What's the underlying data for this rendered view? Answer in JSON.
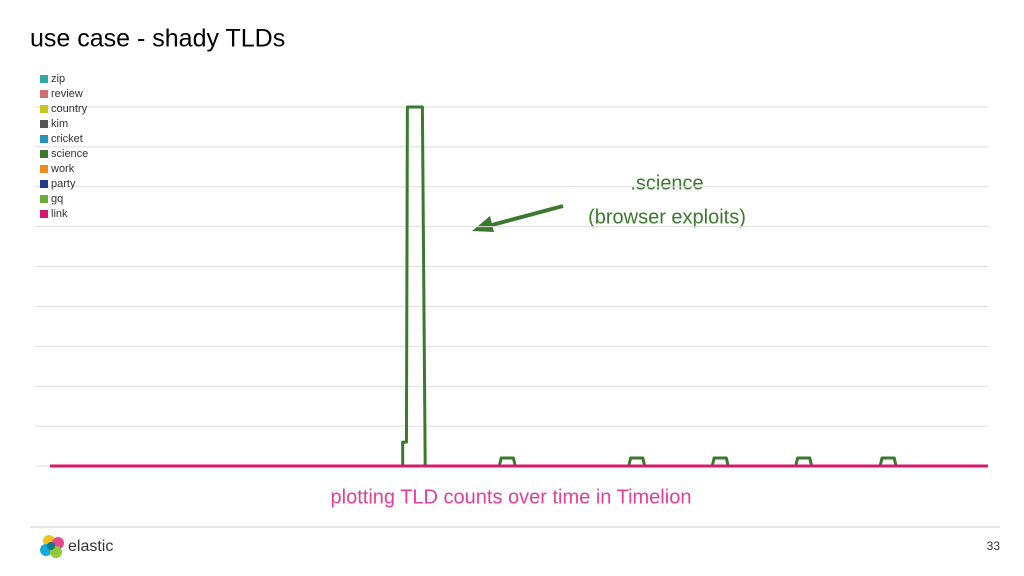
{
  "chart_data": {
    "type": "line",
    "title": "use case - shady TLDs",
    "annotations": [
      ".science",
      "(browser exploits)"
    ],
    "caption": "plotting TLD counts over time in Timelion",
    "footer": {
      "brand": "elastic",
      "page": "33"
    },
    "xlim": [
      0,
      100
    ],
    "ylim": [
      0,
      9
    ],
    "yticks": [
      0,
      1,
      2,
      3,
      4,
      5,
      6,
      7,
      8,
      9
    ],
    "grid": true,
    "legend": "top-left",
    "x": [
      0,
      37.6,
      37.6,
      38.0,
      38.1,
      39.7,
      40.0,
      47.9,
      48.1,
      49.4,
      49.6,
      61.7,
      61.9,
      63.2,
      63.4,
      70.6,
      70.8,
      72.1,
      72.3,
      79.5,
      79.7,
      81.0,
      81.2,
      88.5,
      88.7,
      90.0,
      90.2,
      100
    ],
    "series": [
      {
        "name": "zip",
        "color": "#31a7a3",
        "values": [
          0,
          0,
          0,
          0,
          0,
          0,
          0,
          0,
          0,
          0,
          0,
          0,
          0,
          0,
          0,
          0,
          0,
          0,
          0,
          0,
          0,
          0,
          0,
          0,
          0,
          0,
          0,
          0
        ]
      },
      {
        "name": "review",
        "color": "#d46d6f",
        "values": [
          0,
          0,
          0,
          0,
          0,
          0,
          0,
          0,
          0,
          0,
          0,
          0,
          0,
          0,
          0,
          0,
          0,
          0,
          0,
          0,
          0,
          0,
          0,
          0,
          0,
          0,
          0,
          0
        ]
      },
      {
        "name": "country",
        "color": "#c9c71f",
        "values": [
          0,
          0,
          0,
          0,
          0,
          0,
          0,
          0,
          0,
          0,
          0,
          0,
          0,
          0,
          0,
          0,
          0,
          0,
          0,
          0,
          0,
          0,
          0,
          0,
          0,
          0,
          0,
          0
        ]
      },
      {
        "name": "kim",
        "color": "#555555",
        "values": [
          0,
          0,
          0,
          0,
          0,
          0,
          0,
          0,
          0,
          0,
          0,
          0,
          0,
          0,
          0,
          0,
          0,
          0,
          0,
          0,
          0,
          0,
          0,
          0,
          0,
          0,
          0,
          0
        ]
      },
      {
        "name": "cricket",
        "color": "#2394bd",
        "values": [
          0,
          0,
          0,
          0,
          0,
          0,
          0,
          0,
          0,
          0,
          0,
          0,
          0,
          0,
          0,
          0,
          0,
          0,
          0,
          0,
          0,
          0,
          0,
          0,
          0,
          0,
          0,
          0
        ]
      },
      {
        "name": "science",
        "color": "#3b7a2e",
        "values": [
          0,
          0,
          0.6,
          0.6,
          9,
          9,
          0,
          0,
          0.2,
          0.2,
          0,
          0,
          0.2,
          0.2,
          0,
          0,
          0.2,
          0.2,
          0,
          0,
          0.2,
          0.2,
          0,
          0,
          0.2,
          0.2,
          0,
          0
        ]
      },
      {
        "name": "work",
        "color": "#f08b1d",
        "values": [
          0,
          0,
          0,
          0,
          0,
          0,
          0,
          0,
          0,
          0,
          0,
          0,
          0,
          0,
          0,
          0,
          0,
          0,
          0,
          0,
          0,
          0,
          0,
          0,
          0,
          0,
          0,
          0
        ]
      },
      {
        "name": "party",
        "color": "#1f3b8a",
        "values": [
          0,
          0,
          0,
          0,
          0,
          0,
          0,
          0,
          0,
          0,
          0,
          0,
          0,
          0,
          0,
          0,
          0,
          0,
          0,
          0,
          0,
          0,
          0,
          0,
          0,
          0,
          0,
          0
        ]
      },
      {
        "name": "gq",
        "color": "#6aac38",
        "values": [
          0,
          0,
          0,
          0,
          0,
          0,
          0,
          0,
          0,
          0,
          0,
          0,
          0,
          0,
          0,
          0,
          0,
          0,
          0,
          0,
          0,
          0,
          0,
          0,
          0,
          0,
          0,
          0
        ]
      },
      {
        "name": "link",
        "color": "#d6196e",
        "values": [
          0,
          0,
          0,
          0,
          0,
          0,
          0,
          0,
          0,
          0,
          0,
          0,
          0,
          0,
          0,
          0,
          0,
          0,
          0,
          0,
          0,
          0,
          0,
          0,
          0,
          0,
          0,
          0
        ]
      }
    ]
  }
}
